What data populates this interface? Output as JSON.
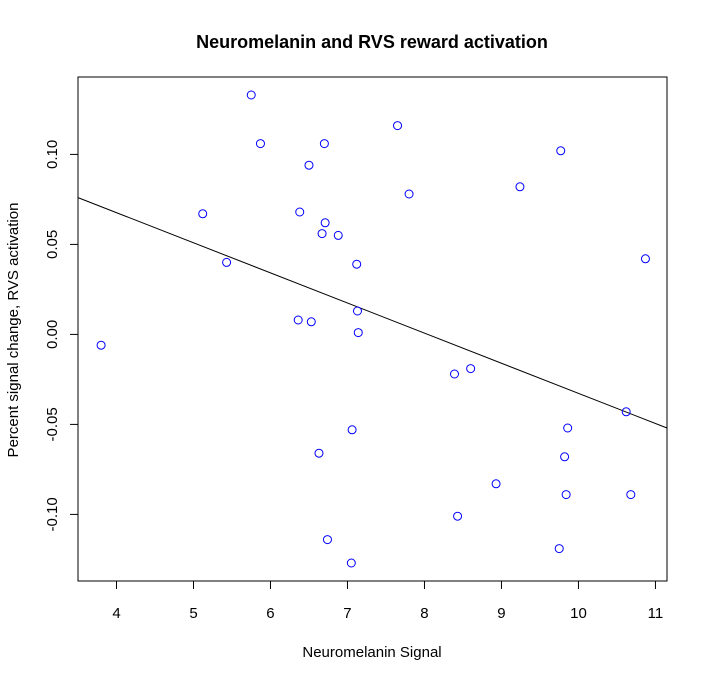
{
  "chart_data": {
    "type": "scatter",
    "title": "Neuromelanin and RVS reward activation",
    "xlabel": "Neuromelanin Signal",
    "ylabel": "Percent signal change, RVS activation",
    "xlim": [
      3.5,
      11.15
    ],
    "ylim": [
      -0.137,
      0.143
    ],
    "xticks": [
      "4",
      "5",
      "6",
      "7",
      "8",
      "9",
      "10",
      "11"
    ],
    "yticks": [
      "-0.10",
      "-0.05",
      "0.00",
      "0.05",
      "0.10"
    ],
    "grid": false,
    "point_color": "#0000ff",
    "line_color": "#000000",
    "x": [
      3.8,
      5.12,
      5.43,
      5.75,
      5.87,
      6.36,
      6.38,
      6.5,
      6.53,
      6.63,
      6.67,
      6.7,
      6.71,
      6.74,
      6.88,
      7.05,
      7.06,
      7.12,
      7.13,
      7.14,
      7.65,
      7.8,
      8.39,
      8.43,
      8.6,
      8.93,
      9.24,
      9.75,
      9.77,
      9.82,
      9.84,
      9.86,
      10.62,
      10.68,
      10.87
    ],
    "y": [
      -0.006,
      0.067,
      0.04,
      0.133,
      0.106,
      0.008,
      0.068,
      0.094,
      0.007,
      -0.066,
      0.056,
      0.106,
      0.062,
      -0.114,
      0.055,
      -0.127,
      -0.053,
      0.039,
      0.013,
      0.001,
      0.116,
      0.078,
      -0.022,
      -0.101,
      -0.019,
      -0.083,
      0.082,
      -0.119,
      0.102,
      -0.068,
      -0.089,
      -0.052,
      -0.043,
      -0.089,
      0.042
    ],
    "fit_line": {
      "x": [
        3.5,
        11.15
      ],
      "y": [
        0.076,
        -0.052
      ]
    }
  }
}
